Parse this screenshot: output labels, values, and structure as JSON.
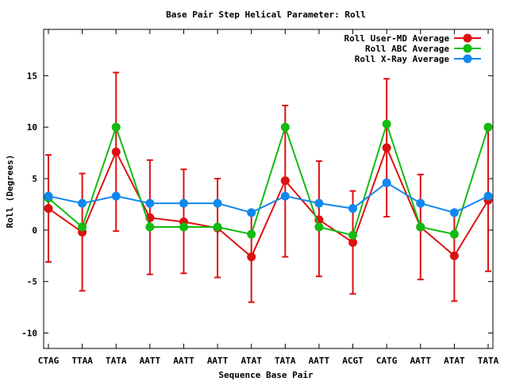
{
  "chart_data": {
    "type": "line",
    "title": "Base Pair Step Helical Parameter: Roll",
    "xlabel": "Sequence Base Pair",
    "ylabel": "Roll (Degrees)",
    "categories": [
      "CTAG",
      "TTAA",
      "TATA",
      "AATT",
      "AATT",
      "AATT",
      "ATAT",
      "TATA",
      "AATT",
      "ACGT",
      "CATG",
      "AATT",
      "ATAT",
      "TATA"
    ],
    "ylim": [
      -11.5,
      19.5
    ],
    "yticks": [
      -10,
      -5,
      0,
      5,
      10,
      15
    ],
    "grid": false,
    "legend_position": "top-right",
    "series": [
      {
        "name": "Roll User-MD Average",
        "color": "#dd1111",
        "values": [
          2.1,
          -0.2,
          7.6,
          1.2,
          0.8,
          0.2,
          -2.6,
          4.8,
          1.0,
          -1.2,
          8.0,
          0.3,
          -2.5,
          2.9
        ],
        "error_low": [
          -3.1,
          -5.9,
          -0.1,
          -4.3,
          -4.2,
          -4.6,
          -7.0,
          -2.6,
          -4.5,
          -6.2,
          1.3,
          -4.8,
          -6.9,
          -4.0
        ],
        "error_high": [
          7.3,
          5.5,
          15.3,
          6.8,
          5.9,
          5.0,
          1.8,
          12.1,
          6.7,
          3.8,
          14.7,
          5.4,
          1.9,
          10.0
        ]
      },
      {
        "name": "Roll ABC Average",
        "color": "#11bb11",
        "values": [
          3.1,
          0.3,
          10.0,
          0.3,
          0.3,
          0.3,
          -0.4,
          10.0,
          0.3,
          -0.5,
          10.3,
          0.3,
          -0.4,
          10.0
        ]
      },
      {
        "name": "Roll X-Ray Average",
        "color": "#1188ee",
        "values": [
          3.3,
          2.6,
          3.3,
          2.6,
          2.6,
          2.6,
          1.7,
          3.3,
          2.6,
          2.1,
          4.6,
          2.6,
          1.7,
          3.3
        ]
      }
    ]
  }
}
